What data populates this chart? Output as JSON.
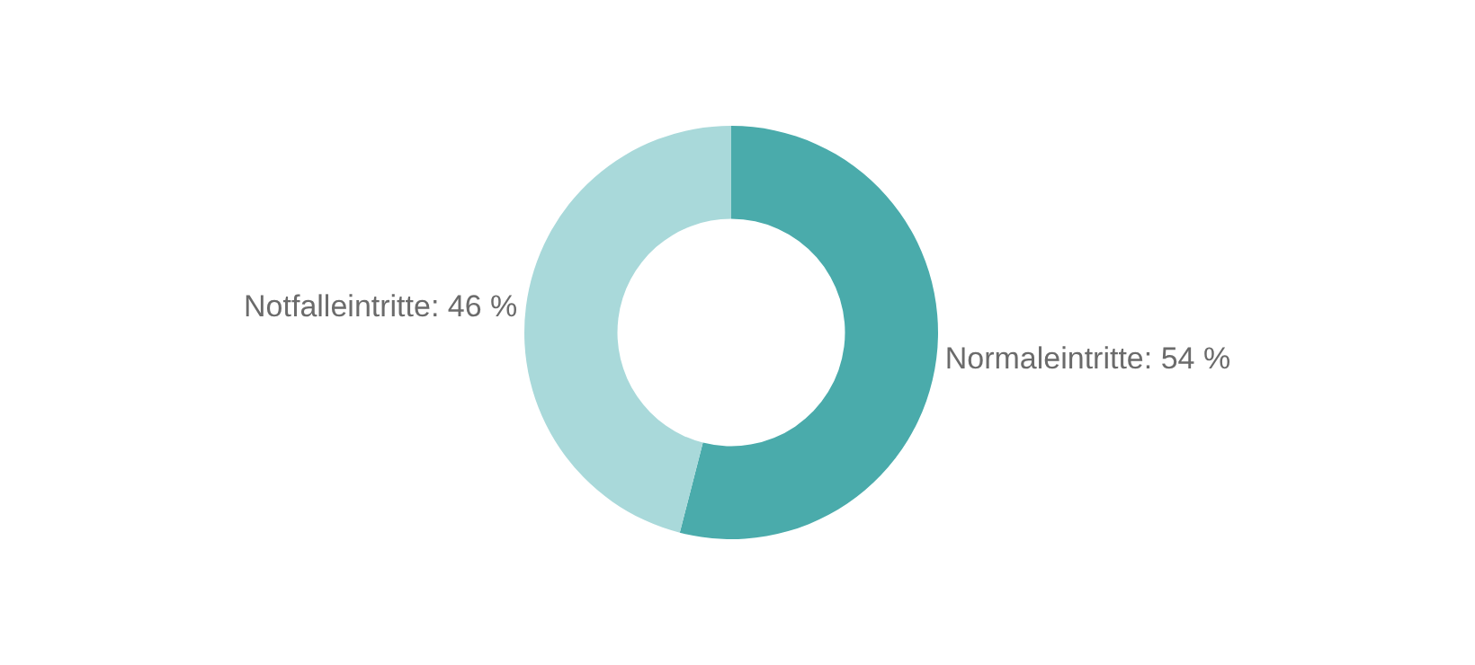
{
  "chart_data": {
    "type": "donut",
    "categories": [
      "Normaleintritte",
      "Notfalleintritte"
    ],
    "values": [
      54,
      46
    ],
    "colors": [
      "#4aabab",
      "#a9d9da"
    ],
    "value_labels": [
      "54 %",
      "46 %"
    ],
    "legend": false
  }
}
